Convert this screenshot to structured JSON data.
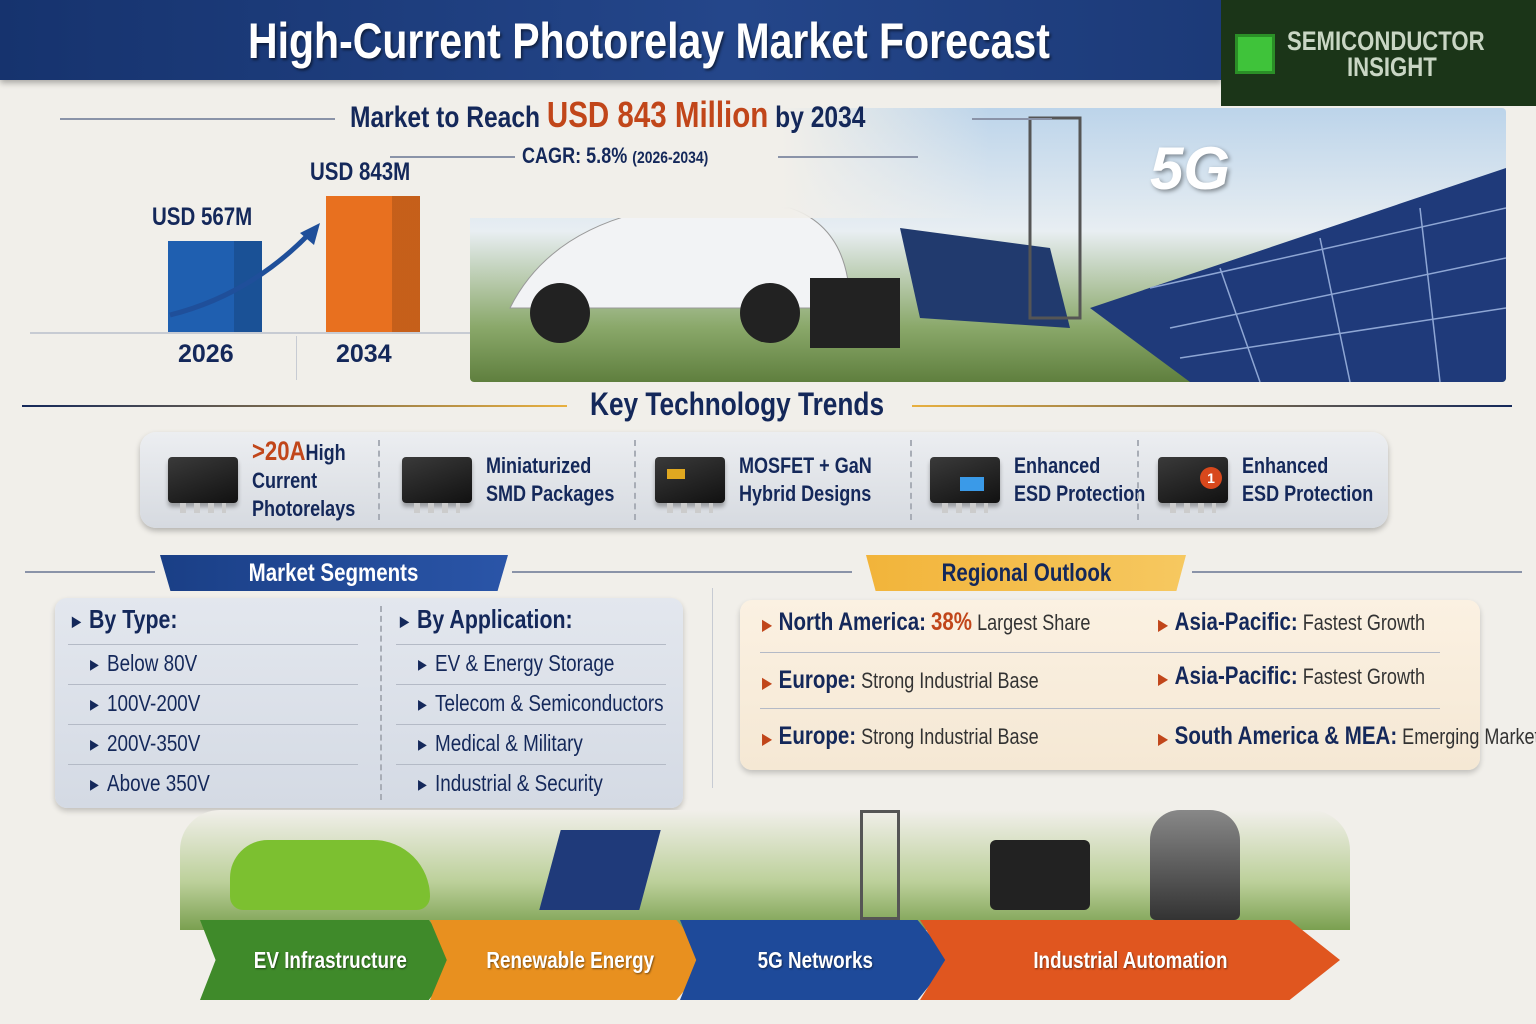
{
  "header": {
    "title": "High-Current Photorelay Market Forecast"
  },
  "logo": {
    "line1": "SEMICONDUCTOR",
    "line2": "INSIGHT"
  },
  "headline": {
    "prefix": "Market to Reach",
    "highlight": "USD 843 Million",
    "suffix": "by 2034"
  },
  "cagr": {
    "label": "CAGR:",
    "value": "5.8%",
    "period": "(2026-2034)"
  },
  "chart_data": {
    "type": "bar",
    "categories": [
      "2026",
      "2034"
    ],
    "values": [
      567,
      843
    ],
    "data_labels": [
      "USD 567M",
      "USD 843M"
    ],
    "unit": "USD Million",
    "colors": [
      "#1f5fb0",
      "#e8701f"
    ]
  },
  "hero": {
    "badge": "5G"
  },
  "trends": {
    "title": "Key Technology Trends",
    "items": [
      {
        "highlight": ">20A",
        "label": "High Current Photorelays",
        "l1": "High",
        "l2": "Current",
        "l3": "Photorelays"
      },
      {
        "l1": "Miniaturized",
        "l2": "SMD Packages"
      },
      {
        "l1": "MOSFET + GaN",
        "l2": "Hybrid Designs"
      },
      {
        "l1": "Enhanced",
        "l2": "ESD Protection"
      },
      {
        "l1": "Enhanced",
        "l2": "ESD Protection",
        "badge": "1"
      }
    ]
  },
  "segments": {
    "title": "Market Segments",
    "by_type": {
      "heading": "By Type:",
      "items": [
        "Below 80V",
        "100V-200V",
        "200V-350V",
        "Above 350V"
      ]
    },
    "by_application": {
      "heading": "By Application:",
      "items": [
        "EV & Energy Storage",
        "Telecom & Semiconductors",
        "Medical & Military",
        "Industrial & Security"
      ]
    }
  },
  "regional": {
    "title": "Regional Outlook",
    "items": [
      {
        "region": "North America:",
        "value": "38%",
        "note": "Largest Share"
      },
      {
        "region": "Asia-Pacific:",
        "note": "Fastest Growth"
      },
      {
        "region": "Europe:",
        "note": "Strong Industrial Base"
      },
      {
        "region": "Asia-Pacific:",
        "note": "Fastest Growth"
      },
      {
        "region": "Europe:",
        "note": "Strong Industrial Base"
      },
      {
        "region": "South America & MEA:",
        "note": "Emerging Markets"
      }
    ]
  },
  "applications": [
    {
      "label": "EV Infrastructure",
      "color": "#3f8a2a"
    },
    {
      "label": "Renewable Energy",
      "color": "#e8901f"
    },
    {
      "label": "5G Networks",
      "color": "#1e4a9a"
    },
    {
      "label": "Industrial Automation",
      "color": "#e0561f"
    }
  ]
}
